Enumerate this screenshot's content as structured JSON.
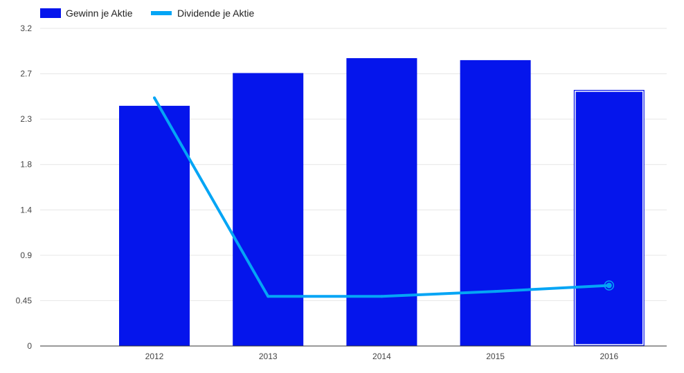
{
  "chart_data": {
    "type": "bar",
    "categories": [
      "2012",
      "2013",
      "2014",
      "2015",
      "2016"
    ],
    "series": [
      {
        "name": "Gewinn je Aktie",
        "kind": "bar",
        "color": "#0515ec",
        "values": [
          2.42,
          2.75,
          2.9,
          2.88,
          2.58
        ]
      },
      {
        "name": "Dividende je Aktie",
        "kind": "line",
        "color": "#04a5f5",
        "values": [
          2.5,
          0.5,
          0.5,
          0.55,
          0.61
        ]
      }
    ],
    "y_ticks": [
      "0",
      "0.45",
      "0.9",
      "1.4",
      "1.8",
      "2.3",
      "2.7",
      "3.2"
    ],
    "ylim": [
      0,
      3.2
    ],
    "grid": true,
    "legend_position": "top-left",
    "highlighted_category": "2016",
    "title": "",
    "xlabel": "",
    "ylabel": ""
  }
}
